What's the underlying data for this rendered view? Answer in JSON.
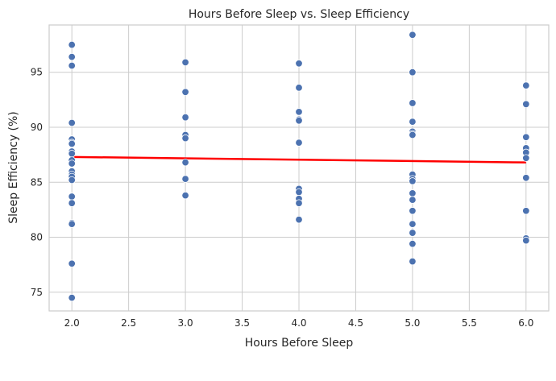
{
  "chart_data": {
    "type": "scatter",
    "title": "Hours Before Sleep vs. Sleep Efficiency",
    "xlabel": "Hours Before Sleep",
    "ylabel": "Sleep Efficiency (%)",
    "xlim": [
      1.8,
      6.2
    ],
    "ylim": [
      73.3,
      99.3
    ],
    "xticks": [
      2.0,
      2.5,
      3.0,
      3.5,
      4.0,
      4.5,
      5.0,
      5.5,
      6.0
    ],
    "xtick_labels": [
      "2.0",
      "2.5",
      "3.0",
      "3.5",
      "4.0",
      "4.5",
      "5.0",
      "5.5",
      "6.0"
    ],
    "yticks": [
      75,
      80,
      85,
      90,
      95
    ],
    "ytick_labels": [
      "75",
      "80",
      "85",
      "90",
      "95"
    ],
    "grid": true,
    "series": [
      {
        "color": "#4c72b0",
        "points": [
          [
            2,
            97.5
          ],
          [
            2,
            96.4
          ],
          [
            2,
            95.6
          ],
          [
            2,
            90.4
          ],
          [
            2,
            88.9
          ],
          [
            2,
            88.6
          ],
          [
            2,
            88.5
          ],
          [
            2,
            87.8
          ],
          [
            2,
            87.6
          ],
          [
            2,
            87.0
          ],
          [
            2,
            86.7
          ],
          [
            2,
            86.0
          ],
          [
            2,
            85.7
          ],
          [
            2,
            85.5
          ],
          [
            2,
            85.2
          ],
          [
            2,
            83.7
          ],
          [
            2,
            83.1
          ],
          [
            2,
            81.3
          ],
          [
            2,
            81.2
          ],
          [
            2,
            77.6
          ],
          [
            2,
            74.5
          ],
          [
            3,
            95.9
          ],
          [
            3,
            93.2
          ],
          [
            3,
            90.9
          ],
          [
            3,
            89.3
          ],
          [
            3,
            89.0
          ],
          [
            3,
            86.8
          ],
          [
            3,
            85.3
          ],
          [
            3,
            83.8
          ],
          [
            4,
            95.8
          ],
          [
            4,
            93.6
          ],
          [
            4,
            91.4
          ],
          [
            4,
            90.7
          ],
          [
            4,
            90.6
          ],
          [
            4,
            88.6
          ],
          [
            4,
            84.4
          ],
          [
            4,
            84.1
          ],
          [
            4,
            83.5
          ],
          [
            4,
            83.1
          ],
          [
            4,
            81.6
          ],
          [
            5,
            98.4
          ],
          [
            5,
            95.0
          ],
          [
            5,
            92.2
          ],
          [
            5,
            90.5
          ],
          [
            5,
            89.6
          ],
          [
            5,
            89.4
          ],
          [
            5,
            89.3
          ],
          [
            5,
            85.7
          ],
          [
            5,
            85.3
          ],
          [
            5,
            85.1
          ],
          [
            5,
            84.0
          ],
          [
            5,
            83.4
          ],
          [
            5,
            82.4
          ],
          [
            5,
            81.2
          ],
          [
            5,
            80.4
          ],
          [
            5,
            79.4
          ],
          [
            5,
            77.8
          ],
          [
            6,
            93.8
          ],
          [
            6,
            92.1
          ],
          [
            6,
            89.1
          ],
          [
            6,
            88.1
          ],
          [
            6,
            87.7
          ],
          [
            6,
            87.2
          ],
          [
            6,
            85.4
          ],
          [
            6,
            82.4
          ],
          [
            6,
            79.9
          ],
          [
            6,
            79.7
          ]
        ]
      }
    ],
    "trend_line": {
      "color": "#ff0000",
      "x": [
        2.0,
        6.0
      ],
      "y": [
        87.3,
        86.8
      ]
    }
  }
}
